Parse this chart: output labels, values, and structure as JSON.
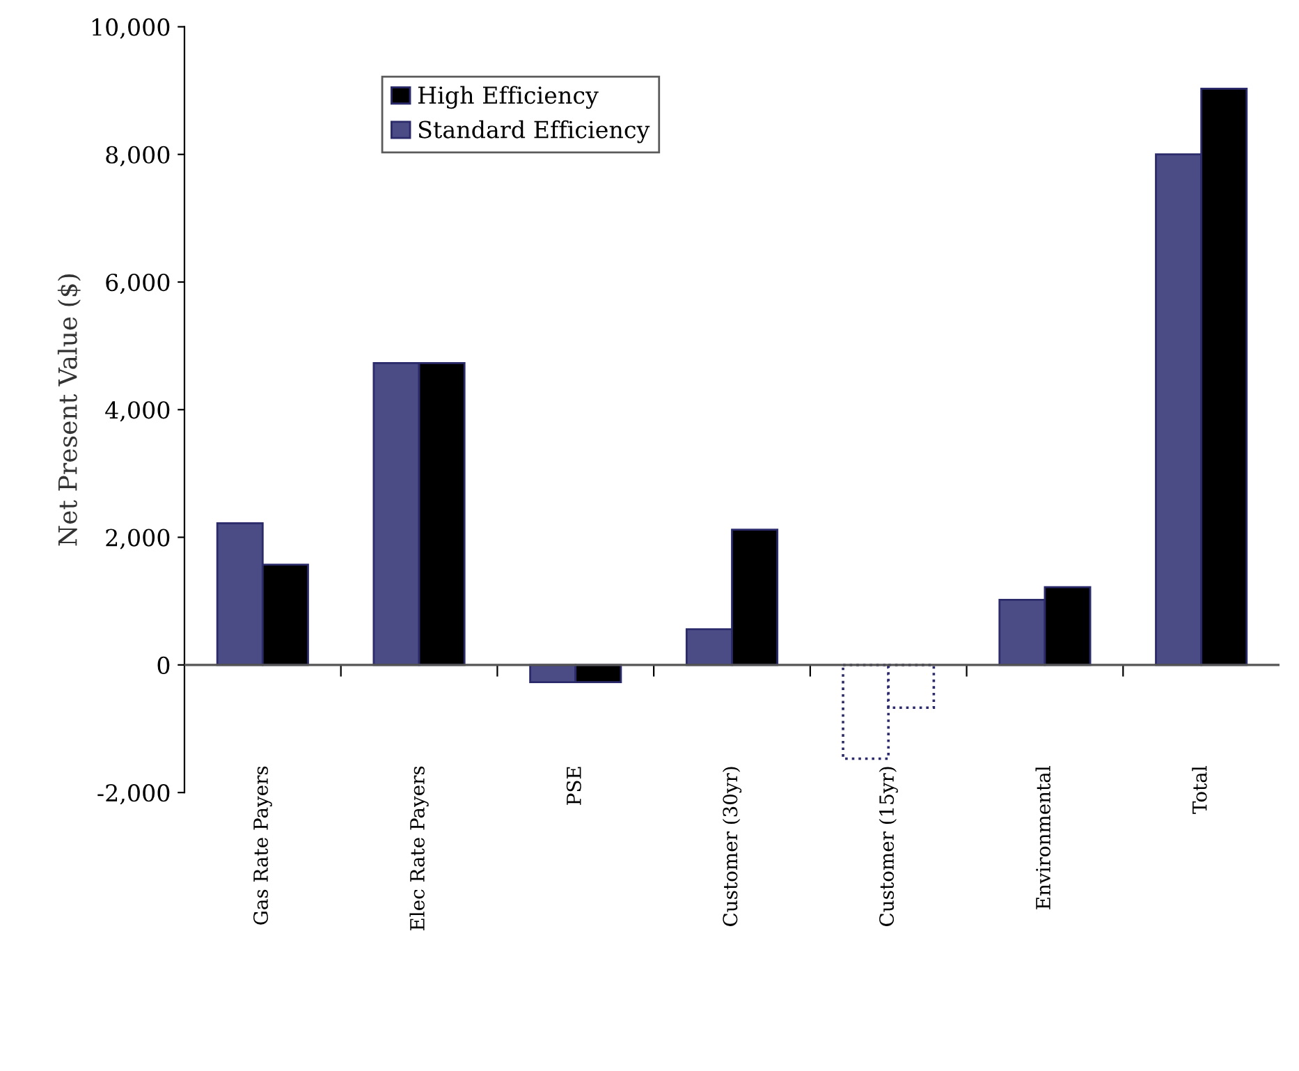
{
  "chart_data": {
    "type": "bar",
    "ylabel": "Net Present Value ($)",
    "categories": [
      "Gas Rate Payers",
      "Elec Rate Payers",
      "PSE",
      "Customer (30yr)",
      "Customer (15yr)",
      "Environmental",
      "Total"
    ],
    "series": [
      {
        "name": "Standard Efficiency",
        "color": "#4b4b85",
        "colors": [
          "#4b4b85",
          "#4b4b85",
          "#4b4b85",
          "#4b4b85",
          "#ffffff",
          "#4b4b85",
          "#4b4b85"
        ],
        "values": [
          2220,
          4730,
          -270,
          560,
          -1470,
          1020,
          8000
        ]
      },
      {
        "name": "High Efficiency",
        "color": "#000000",
        "colors": [
          "#000000",
          "#000000",
          "#000000",
          "#000000",
          "#ffffff",
          "#000000",
          "#000000"
        ],
        "values": [
          1570,
          4730,
          -270,
          2120,
          -670,
          1220,
          9030
        ]
      }
    ],
    "ylim": [
      -2000,
      10000
    ],
    "yticks": [
      {
        "value": -2000,
        "label": "-2,000"
      },
      {
        "value": 0,
        "label": "0"
      },
      {
        "value": 2000,
        "label": "2,000"
      },
      {
        "value": 4000,
        "label": "4,000"
      },
      {
        "value": 6000,
        "label": "6,000"
      },
      {
        "value": 8000,
        "label": "8,000"
      },
      {
        "value": 10000,
        "label": "10,000"
      }
    ],
    "legend": "top left"
  }
}
